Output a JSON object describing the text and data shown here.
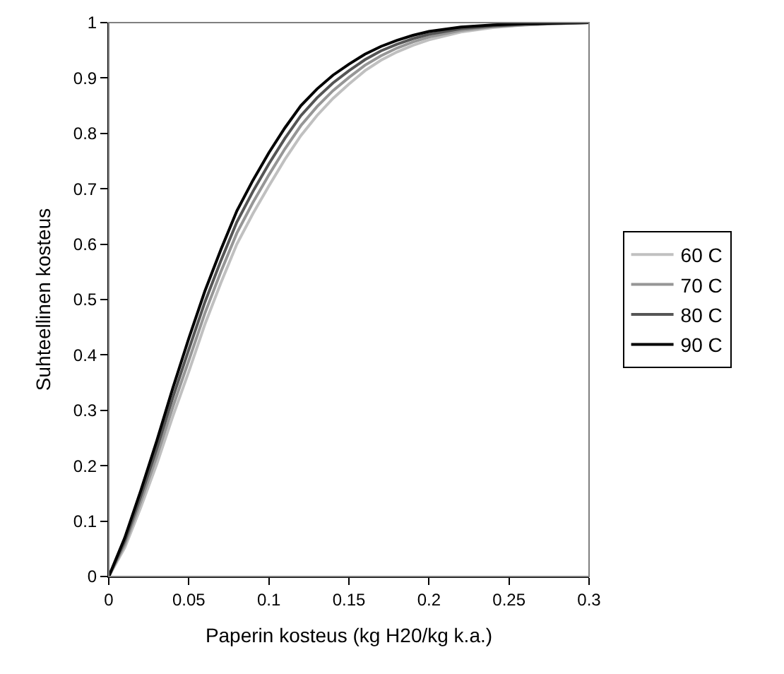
{
  "chart_data": {
    "type": "line",
    "xlabel": "Paperin kosteus (kg H20/kg k.a.)",
    "ylabel": "Suhteellinen kosteus",
    "x": [
      0,
      0.01,
      0.02,
      0.03,
      0.04,
      0.05,
      0.06,
      0.07,
      0.08,
      0.09,
      0.1,
      0.11,
      0.12,
      0.13,
      0.14,
      0.15,
      0.16,
      0.17,
      0.18,
      0.19,
      0.2,
      0.22,
      0.24,
      0.26,
      0.28,
      0.3
    ],
    "series": [
      {
        "name": "60 C",
        "color": "#c0c0c0",
        "values": [
          0,
          0.052,
          0.125,
          0.203,
          0.289,
          0.37,
          0.455,
          0.53,
          0.6,
          0.655,
          0.705,
          0.753,
          0.796,
          0.832,
          0.863,
          0.889,
          0.913,
          0.932,
          0.947,
          0.959,
          0.969,
          0.983,
          0.991,
          0.996,
          0.998,
          1
        ]
      },
      {
        "name": "70 C",
        "color": "#969696",
        "values": [
          0,
          0.058,
          0.135,
          0.217,
          0.306,
          0.39,
          0.475,
          0.55,
          0.62,
          0.675,
          0.725,
          0.772,
          0.814,
          0.848,
          0.877,
          0.901,
          0.923,
          0.94,
          0.954,
          0.965,
          0.974,
          0.986,
          0.993,
          0.996,
          0.998,
          1
        ]
      },
      {
        "name": "80 C",
        "color": "#555555",
        "values": [
          0,
          0.064,
          0.145,
          0.231,
          0.323,
          0.41,
          0.495,
          0.57,
          0.64,
          0.695,
          0.745,
          0.791,
          0.832,
          0.864,
          0.891,
          0.913,
          0.933,
          0.949,
          0.961,
          0.971,
          0.979,
          0.989,
          0.994,
          0.997,
          0.999,
          1
        ]
      },
      {
        "name": "90 C",
        "color": "#000000",
        "values": [
          0,
          0.07,
          0.155,
          0.245,
          0.34,
          0.43,
          0.515,
          0.59,
          0.66,
          0.715,
          0.765,
          0.81,
          0.85,
          0.88,
          0.905,
          0.925,
          0.943,
          0.957,
          0.968,
          0.977,
          0.984,
          0.992,
          0.996,
          0.998,
          0.999,
          1
        ]
      }
    ],
    "xlim": [
      0,
      0.3
    ],
    "xticks": [
      0,
      0.05,
      0.1,
      0.15,
      0.2,
      0.25,
      0.3
    ],
    "ylim": [
      0,
      1
    ],
    "yticks": [
      0,
      0.1,
      0.2,
      0.3,
      0.4,
      0.5,
      0.6,
      0.7,
      0.8,
      0.9,
      1
    ],
    "grid": false,
    "legend": "right",
    "marker": "none",
    "line_style": "solid"
  }
}
